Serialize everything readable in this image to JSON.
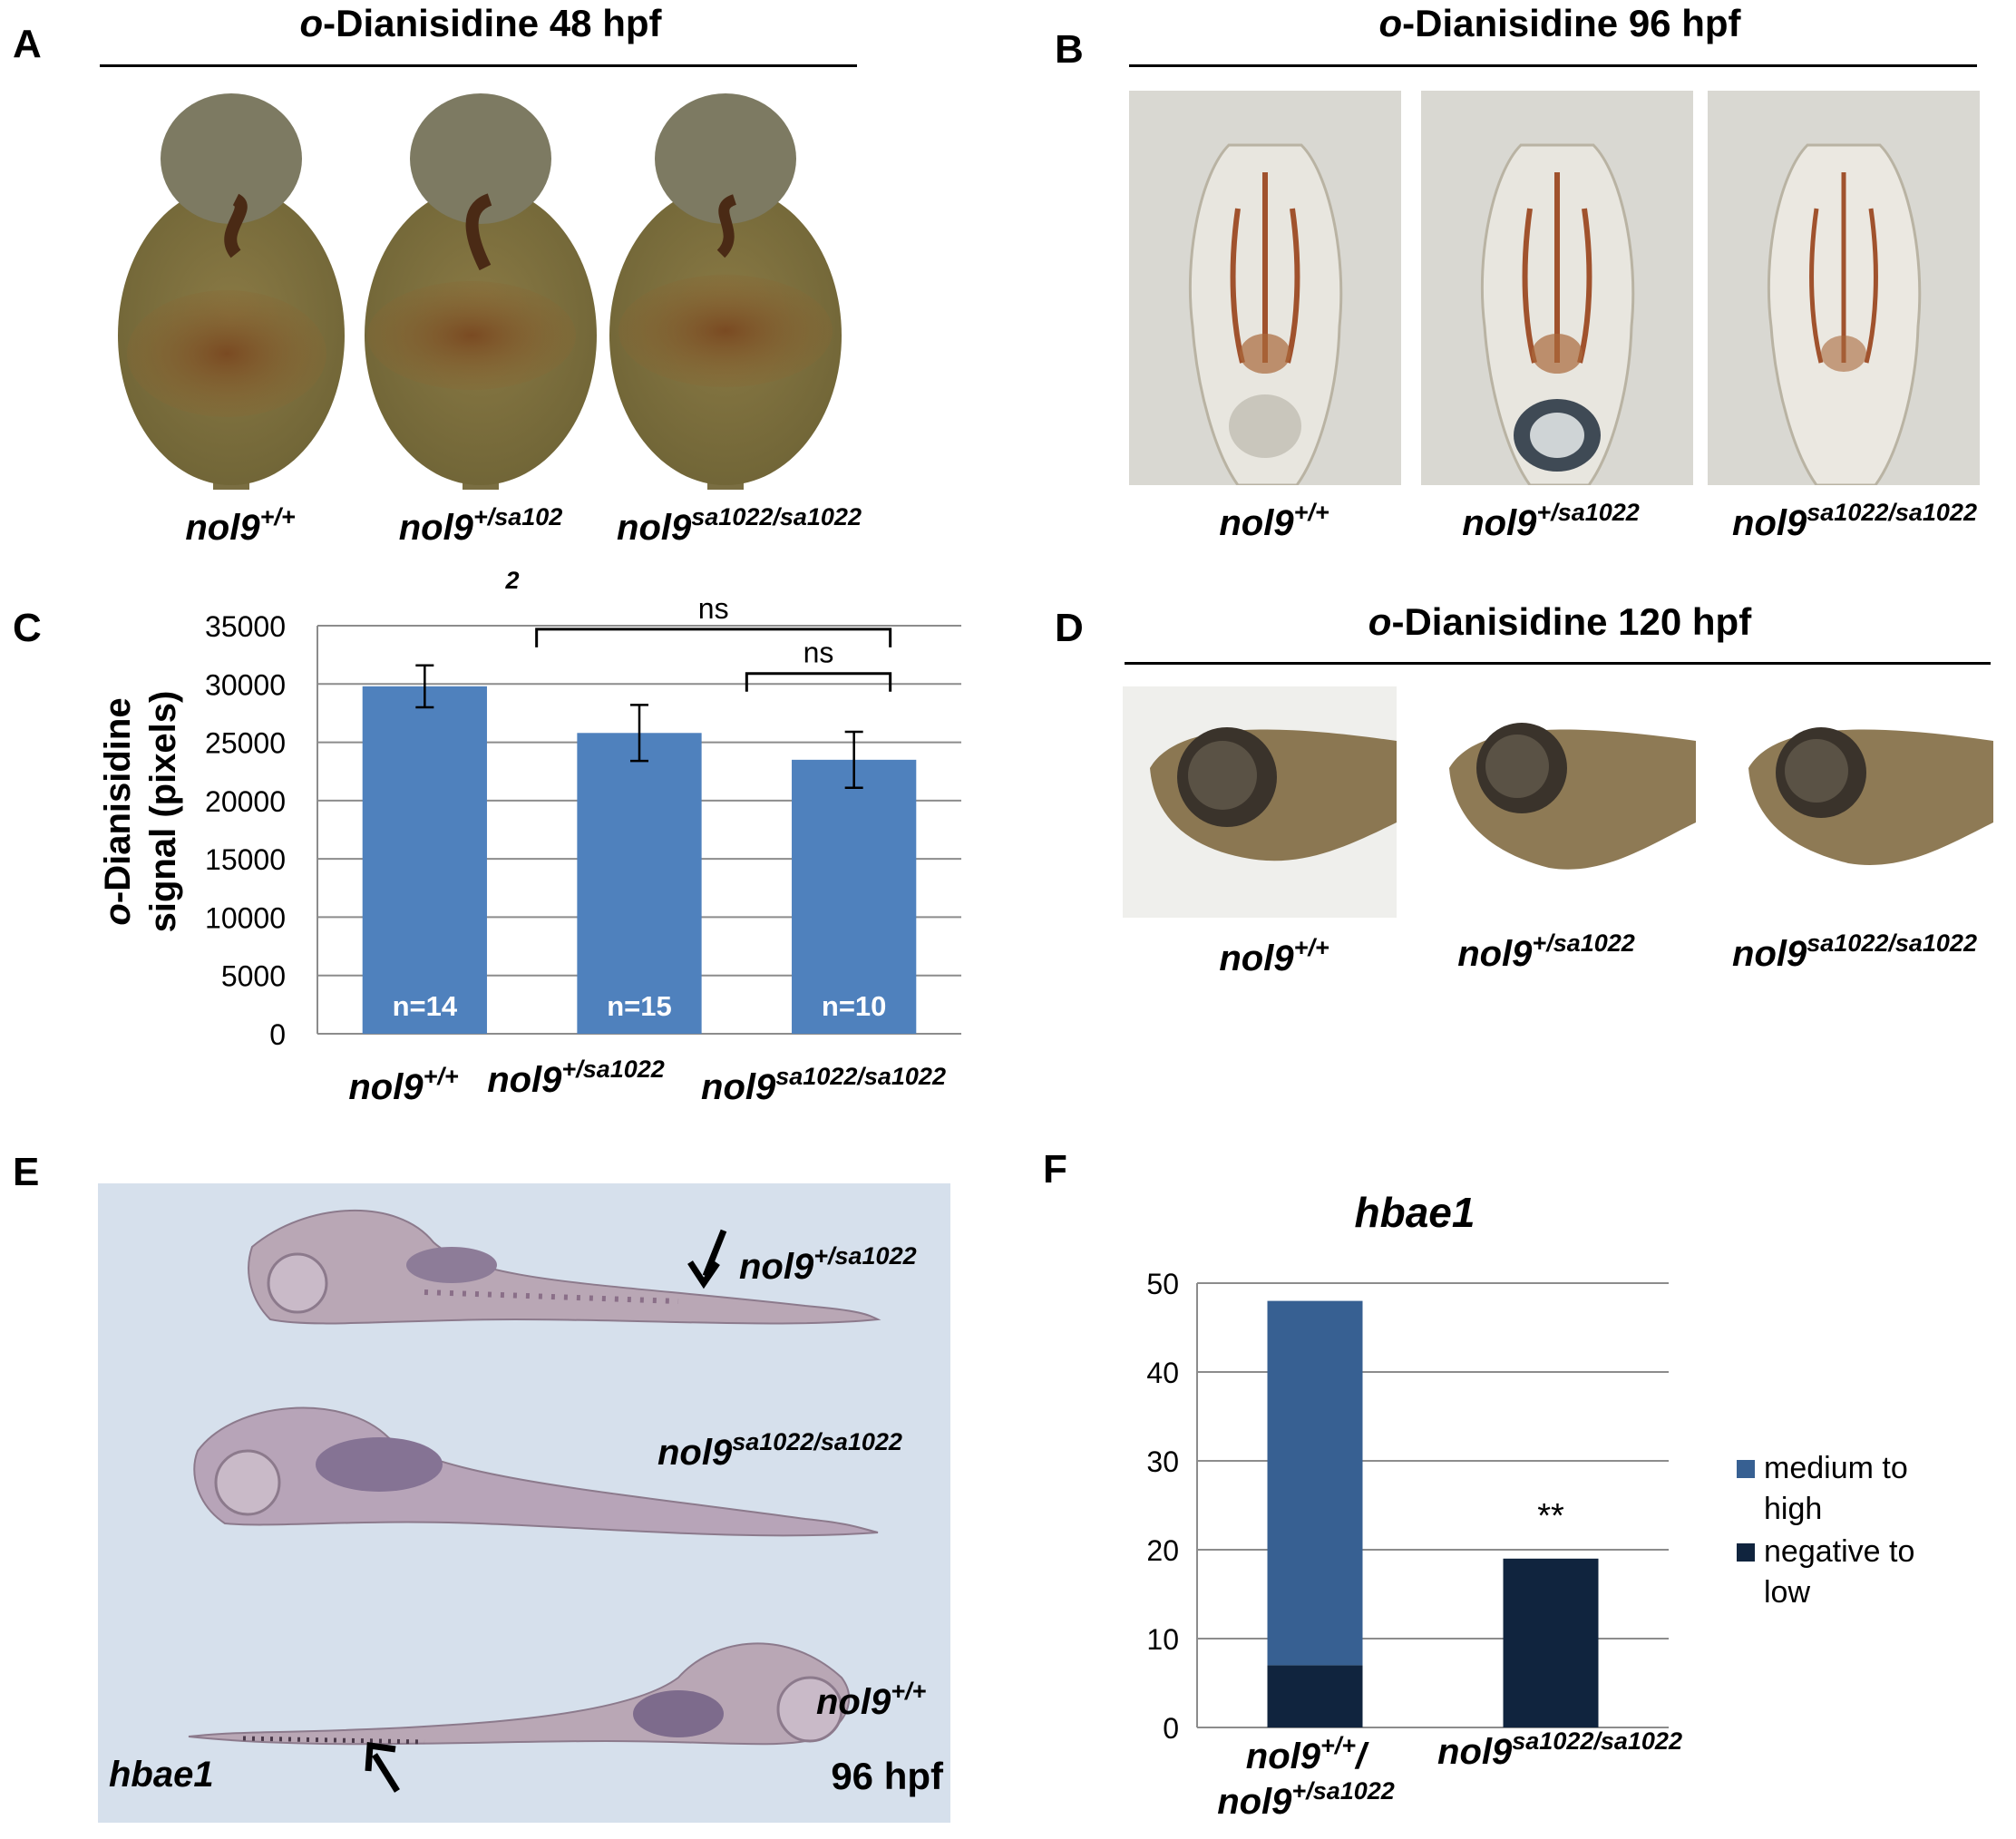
{
  "panels": {
    "A": {
      "letter": "A",
      "title_italic": "o",
      "title_rest": "-Dianisidine 48 hpf",
      "genotypes": [
        {
          "base": "nol9",
          "sup": "+/+",
          "sub": ""
        },
        {
          "base": "nol9",
          "sup": "+/sa102",
          "sub": "2"
        },
        {
          "base": "nol9",
          "sup": "sa1022/sa1022",
          "sub": ""
        }
      ]
    },
    "B": {
      "letter": "B",
      "title_italic": "o",
      "title_rest": "-Dianisidine 96 hpf",
      "genotypes": [
        {
          "base": "nol9",
          "sup": "+/+"
        },
        {
          "base": "nol9",
          "sup": "+/sa1022"
        },
        {
          "base": "nol9",
          "sup": "sa1022/sa1022"
        }
      ]
    },
    "C": {
      "letter": "C",
      "ylabel_italic": "o",
      "ylabel_line1_rest": "-Dianisidine",
      "ylabel_line2": "signal (pixels)",
      "sig_label": "ns",
      "genotypes": [
        {
          "base": "nol9",
          "sup": "+/+"
        },
        {
          "base": "nol9",
          "sup": "+/sa1022"
        },
        {
          "base": "nol9",
          "sup": "sa1022/sa1022"
        }
      ]
    },
    "D": {
      "letter": "D",
      "title_italic": "o",
      "title_rest": "-Dianisidine 120 hpf",
      "genotypes": [
        {
          "base": "nol9",
          "sup": "+/+"
        },
        {
          "base": "nol9",
          "sup": "+/sa1022"
        },
        {
          "base": "nol9",
          "sup": "sa1022/sa1022"
        }
      ]
    },
    "E": {
      "letter": "E",
      "probe": "hbae1",
      "stage": "96 hpf",
      "labels": [
        {
          "base": "nol9",
          "sup": "+/sa1022"
        },
        {
          "base": "nol9",
          "sup": "sa1022/sa1022"
        },
        {
          "base": "nol9",
          "sup": "+/+"
        }
      ]
    },
    "F": {
      "letter": "F",
      "title": "hbae1",
      "sig_label": "**",
      "cat1_line1_base": "nol9",
      "cat1_line1_sup": "+/+",
      "cat1_line1_tail": "/",
      "cat1_line2_base": "nol9",
      "cat1_line2_sup": "+/sa1022",
      "cat2_base": "nol9",
      "cat2_sup": "sa1022/sa1022",
      "legend": [
        "medium to high",
        "negative to low"
      ]
    }
  },
  "colors": {
    "bar_blue": "#4f81bd",
    "stack_light": "#376092",
    "stack_dark": "#10243e"
  },
  "chart_data": [
    {
      "type": "bar",
      "panel": "C",
      "categories": [
        "nol9+/+",
        "nol9+/sa1022",
        "nol9sa1022/sa1022"
      ],
      "values": [
        29800,
        25800,
        23500
      ],
      "error": [
        1800,
        2400,
        2400
      ],
      "bar_labels": [
        "n=14",
        "n=15",
        "n=10"
      ],
      "ylabel": "o-Dianisidine signal (pixels)",
      "ylim": [
        0,
        35000
      ],
      "yticks": [
        0,
        5000,
        10000,
        15000,
        20000,
        25000,
        30000,
        35000
      ],
      "grid": true,
      "comparisons": [
        {
          "from": 1,
          "to": 2,
          "label": "ns"
        },
        {
          "from": 0.5,
          "to": 2,
          "label": "ns"
        }
      ]
    },
    {
      "type": "bar",
      "stacked": true,
      "panel": "F",
      "title": "hbae1",
      "categories": [
        "nol9+/+/nol9+/sa1022",
        "nol9sa1022/sa1022"
      ],
      "series": [
        {
          "name": "negative to low",
          "values": [
            7,
            19
          ]
        },
        {
          "name": "medium to high",
          "values": [
            41,
            0
          ]
        }
      ],
      "ylim": [
        0,
        50
      ],
      "yticks": [
        0,
        10,
        20,
        30,
        40,
        50
      ],
      "grid": true,
      "legend_position": "right",
      "annotations": [
        {
          "category": 1,
          "text": "**"
        }
      ]
    }
  ]
}
